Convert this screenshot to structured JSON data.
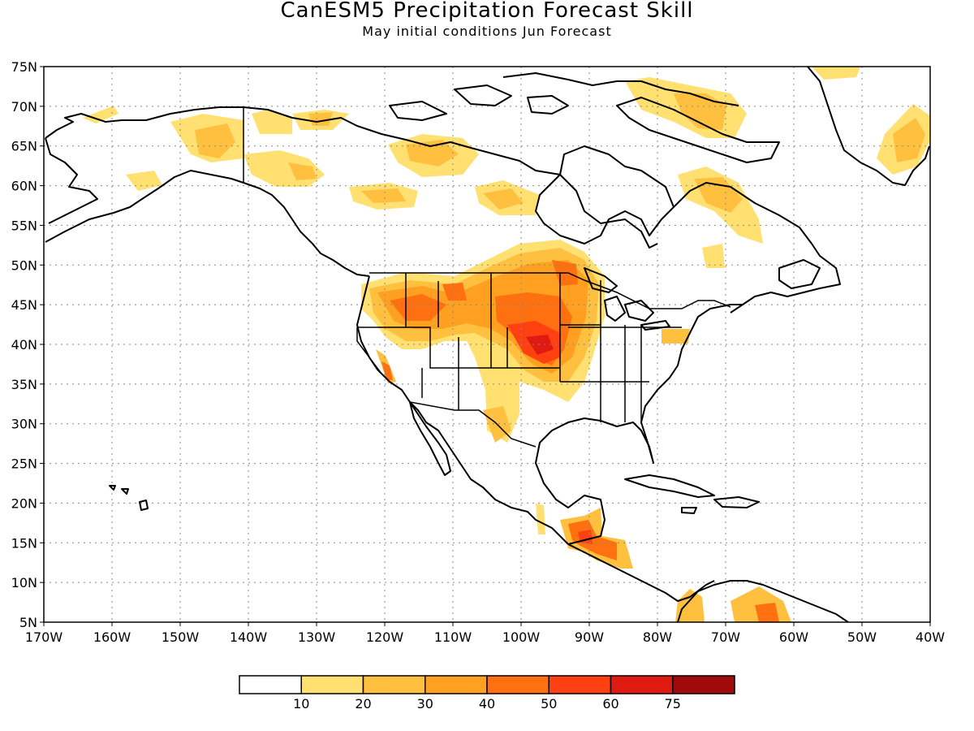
{
  "header": {
    "title": "CanESM5 Precipitation Forecast Skill",
    "subtitle": "May initial conditions  Jun Forecast"
  },
  "map": {
    "lat_labels": [
      "75N",
      "70N",
      "65N",
      "60N",
      "55N",
      "50N",
      "45N",
      "40N",
      "35N",
      "30N",
      "25N",
      "20N",
      "15N",
      "10N",
      "5N"
    ],
    "lon_labels": [
      "170W",
      "160W",
      "150W",
      "140W",
      "130W",
      "120W",
      "110W",
      "100W",
      "90W",
      "80W",
      "70W",
      "60W",
      "50W",
      "40W"
    ],
    "lon_range": [
      -170,
      -40
    ],
    "lat_range": [
      5,
      75
    ],
    "grid": "dotted",
    "coastline_color": "#000000"
  },
  "colorbar": {
    "labels": [
      "10",
      "20",
      "30",
      "40",
      "50",
      "60",
      "75"
    ],
    "colors": [
      "#ffffff",
      "#ffe070",
      "#ffc040",
      "#ffa020",
      "#ff7010",
      "#ff4010",
      "#e01a10",
      "#a00a0a"
    ]
  }
}
